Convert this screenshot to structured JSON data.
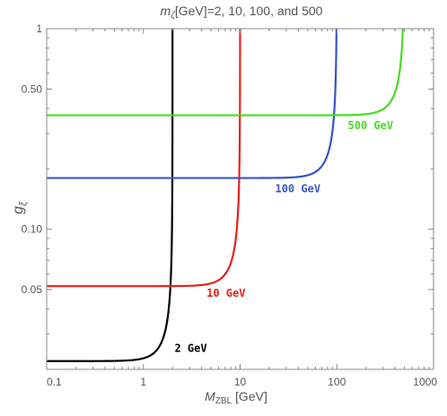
{
  "chart_data": {
    "type": "line",
    "title": "m_ζ[GeV]=2, 10, 100, and 500",
    "title_parts": {
      "symbol": "m",
      "subscript": "ζ",
      "rest": "[GeV]=2, 10, 100, and 500"
    },
    "xlabel": "M_ZBL [GeV]",
    "xlabel_parts": {
      "symbol": "M",
      "subscript": "ZBL",
      "rest": " [GeV]"
    },
    "ylabel": "g_ξ",
    "ylabel_parts": {
      "symbol": "g",
      "subscript": "ξ"
    },
    "x_scale": "log",
    "y_scale": "log",
    "xlim": [
      0.1,
      1000
    ],
    "ylim": [
      0.02,
      1
    ],
    "x_ticks": [
      {
        "value": 0.1,
        "label": "0.1"
      },
      {
        "value": 1,
        "label": "1"
      },
      {
        "value": 10,
        "label": "10"
      },
      {
        "value": 100,
        "label": "100"
      },
      {
        "value": 1000,
        "label": "1000"
      }
    ],
    "y_ticks": [
      {
        "value": 1,
        "label": "1"
      },
      {
        "value": 0.5,
        "label": "0.50"
      },
      {
        "value": 0.1,
        "label": "0.10"
      },
      {
        "value": 0.05,
        "label": "0.05"
      }
    ],
    "grid": false,
    "legend": "none",
    "series": [
      {
        "label": "2 GeV",
        "color": "#000000",
        "vertical_x": 2,
        "plateau": 0.022,
        "label_pos": {
          "x": 2.1,
          "y": 0.0245
        }
      },
      {
        "label": "10 GeV",
        "color": "#e8211b",
        "vertical_x": 10,
        "plateau": 0.052,
        "label_pos": {
          "x": 4.5,
          "y": 0.046
        }
      },
      {
        "label": "100 GeV",
        "color": "#3355cc",
        "vertical_x": 100,
        "plateau": 0.18,
        "label_pos": {
          "x": 23,
          "y": 0.153
        }
      },
      {
        "label": "500 GeV",
        "color": "#44dd22",
        "vertical_x": 500,
        "plateau": 0.37,
        "label_pos": {
          "x": 130,
          "y": 0.315
        }
      }
    ]
  }
}
